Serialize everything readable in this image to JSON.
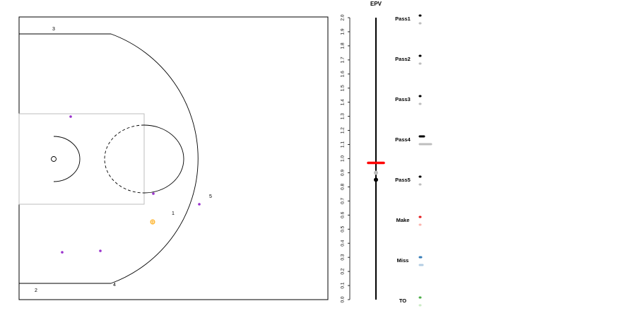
{
  "court": {
    "players_offense_labels": [
      "1",
      "2",
      "3",
      "4",
      "5"
    ],
    "colors": {
      "defense": "#9a32cd",
      "ball": "#ffa500",
      "lines": "#000000",
      "paint": "#bebebe"
    }
  },
  "epv_axis": {
    "title": "EPV",
    "ylim": [
      0,
      2
    ],
    "ticks": [
      "0.0",
      "0.1",
      "0.2",
      "0.3",
      "0.4",
      "0.5",
      "0.6",
      "0.7",
      "0.8",
      "0.9",
      "1.0",
      "1.1",
      "1.2",
      "1.3",
      "1.4",
      "1.5",
      "1.6",
      "1.7",
      "1.8",
      "1.9",
      "2.0"
    ]
  },
  "chart_data": {
    "type": "scatter",
    "title": "EPV",
    "ylim": [
      0,
      2
    ],
    "current_epv": {
      "red_bar": 0.97,
      "gray_dot": 0.9,
      "black_dot": 0.85
    },
    "categories": [
      {
        "label": "Pass1",
        "dark": "#000000",
        "light": "#bebebe"
      },
      {
        "label": "Pass2",
        "dark": "#000000",
        "light": "#bebebe"
      },
      {
        "label": "Pass3",
        "dark": "#000000",
        "light": "#bebebe"
      },
      {
        "label": "Pass4",
        "dark": "#000000",
        "light": "#bebebe"
      },
      {
        "label": "Pass5",
        "dark": "#000000",
        "light": "#bebebe"
      },
      {
        "label": "Make",
        "dark": "#e41a1c",
        "light": "#fbb4ae"
      },
      {
        "label": "Miss",
        "dark": "#377eb8",
        "light": "#b3cde3"
      },
      {
        "label": "TO",
        "dark": "#4daf4a",
        "light": "#ccebc5"
      }
    ]
  }
}
